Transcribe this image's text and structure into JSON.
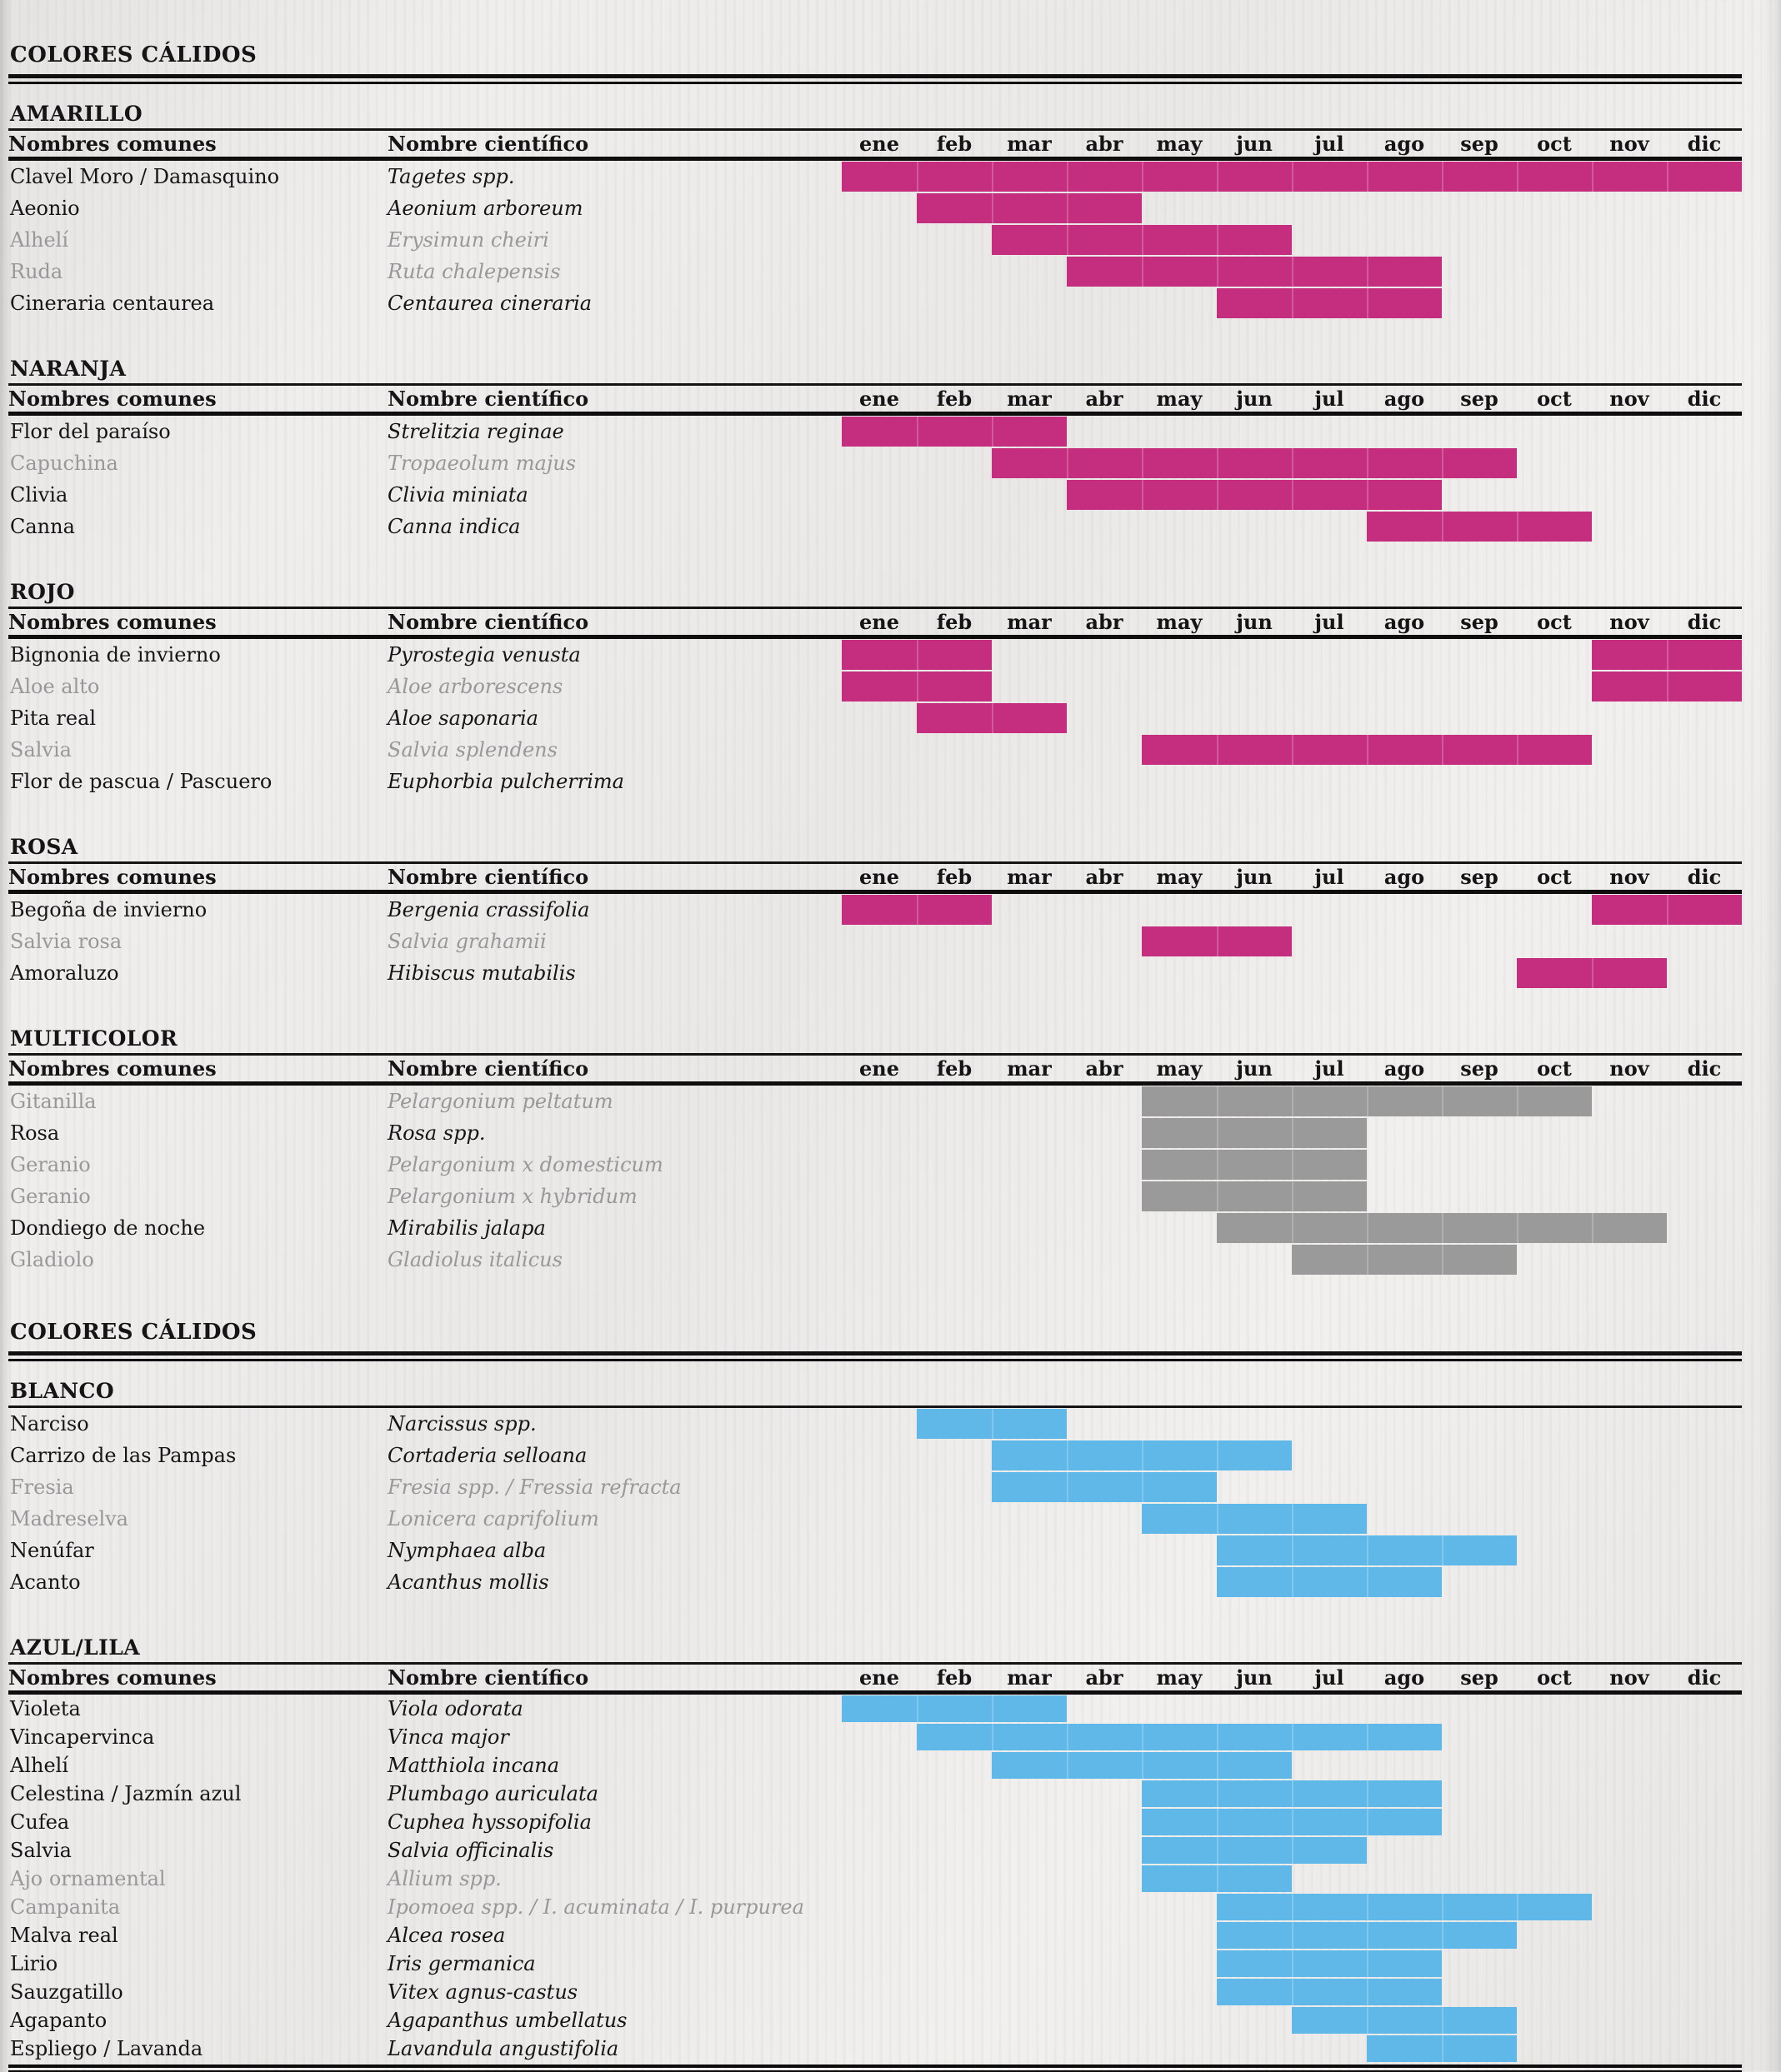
{
  "chart_data": {
    "type": "table",
    "title": "COLORES CÁLIDOS",
    "description_visible_text_only": true,
    "months": [
      "ene",
      "feb",
      "mar",
      "abr",
      "may",
      "jun",
      "jul",
      "ago",
      "sep",
      "oct",
      "nov",
      "dic"
    ],
    "column_headers": {
      "common": "Nombres comunes",
      "scientific": "Nombre científico"
    },
    "colors": {
      "warm_bar": "#c52d7e",
      "multicolor_bar": "#9a9a9a",
      "cool_bar": "#5fb8e8",
      "muted_text": "#989898",
      "ink": "#141414"
    },
    "groups": [
      {
        "title": "COLORES CÁLIDOS",
        "sections": [
          {
            "name": "AMARILLO",
            "bar_color": "#c52d7e",
            "month_header": true,
            "rows": [
              {
                "common": "Clavel Moro / Damasquino",
                "scientific": "Tagetes spp.",
                "muted": false,
                "bars": [
                  [
                    1,
                    12
                  ]
                ]
              },
              {
                "common": "Aeonio",
                "scientific": "Aeonium arboreum",
                "muted": false,
                "bars": [
                  [
                    2,
                    4
                  ]
                ]
              },
              {
                "common": "Alhelí",
                "scientific": "Erysimun cheiri",
                "muted": true,
                "bars": [
                  [
                    3,
                    6
                  ]
                ]
              },
              {
                "common": "Ruda",
                "scientific": "Ruta chalepensis",
                "muted": true,
                "bars": [
                  [
                    4,
                    8
                  ]
                ]
              },
              {
                "common": "Cineraria centaurea",
                "scientific": "Centaurea cineraria",
                "muted": false,
                "bars": [
                  [
                    6,
                    8
                  ]
                ]
              }
            ]
          },
          {
            "name": "NARANJA",
            "bar_color": "#c52d7e",
            "month_header": true,
            "rows": [
              {
                "common": "Flor del paraíso",
                "scientific": "Strelitzia reginae",
                "muted": false,
                "bars": [
                  [
                    1,
                    3
                  ]
                ]
              },
              {
                "common": "Capuchina",
                "scientific": "Tropaeolum majus",
                "muted": true,
                "bars": [
                  [
                    3,
                    9
                  ]
                ]
              },
              {
                "common": "Clivia",
                "scientific": "Clivia miniata",
                "muted": false,
                "bars": [
                  [
                    4,
                    8
                  ]
                ]
              },
              {
                "common": "Canna",
                "scientific": "Canna indica",
                "muted": false,
                "bars": [
                  [
                    8,
                    10
                  ]
                ]
              }
            ]
          },
          {
            "name": "ROJO",
            "bar_color": "#c52d7e",
            "month_header": true,
            "rows": [
              {
                "common": "Bignonia de invierno",
                "scientific": "Pyrostegia venusta",
                "muted": false,
                "bars": [
                  [
                    1,
                    2
                  ],
                  [
                    11,
                    12
                  ]
                ]
              },
              {
                "common": "Aloe alto",
                "scientific": "Aloe arborescens",
                "muted": true,
                "bars": [
                  [
                    1,
                    2
                  ],
                  [
                    11,
                    12
                  ]
                ]
              },
              {
                "common": "Pita real",
                "scientific": "Aloe saponaria",
                "muted": false,
                "bars": [
                  [
                    2,
                    3
                  ]
                ]
              },
              {
                "common": "Salvia",
                "scientific": "Salvia splendens",
                "muted": true,
                "bars": [
                  [
                    5,
                    10
                  ]
                ]
              },
              {
                "common": "Flor de pascua / Pascuero",
                "scientific": "Euphorbia pulcherrima",
                "muted": false,
                "bars": []
              }
            ]
          },
          {
            "name": "ROSA",
            "bar_color": "#c52d7e",
            "month_header": true,
            "rows": [
              {
                "common": "Begoña de invierno",
                "scientific": "Bergenia crassifolia",
                "muted": false,
                "bars": [
                  [
                    1,
                    2
                  ],
                  [
                    11,
                    12
                  ]
                ]
              },
              {
                "common": "Salvia rosa",
                "scientific": "Salvia grahamii",
                "muted": true,
                "bars": [
                  [
                    5,
                    6
                  ]
                ]
              },
              {
                "common": "Amoraluzo",
                "scientific": "Hibiscus mutabilis",
                "muted": false,
                "bars": [
                  [
                    10,
                    11
                  ]
                ]
              }
            ]
          },
          {
            "name": "MULTICOLOR",
            "bar_color": "#9a9a9a",
            "month_header": true,
            "rows": [
              {
                "common": "Gitanilla",
                "scientific": "Pelargonium peltatum",
                "muted": true,
                "bars": [
                  [
                    5,
                    10
                  ]
                ]
              },
              {
                "common": "Rosa",
                "scientific": "Rosa spp.",
                "muted": false,
                "bars": [
                  [
                    5,
                    7
                  ]
                ]
              },
              {
                "common": "Geranio",
                "scientific": "Pelargonium x domesticum",
                "muted": true,
                "bars": [
                  [
                    5,
                    7
                  ]
                ]
              },
              {
                "common": "Geranio",
                "scientific": "Pelargonium x hybridum",
                "muted": true,
                "bars": [
                  [
                    5,
                    7
                  ]
                ]
              },
              {
                "common": "Dondiego de noche",
                "scientific": "Mirabilis jalapa",
                "muted": false,
                "bars": [
                  [
                    6,
                    11
                  ]
                ]
              },
              {
                "common": "Gladiolo",
                "scientific": "Gladiolus italicus",
                "muted": true,
                "bars": [
                  [
                    7,
                    9
                  ]
                ]
              }
            ]
          }
        ]
      },
      {
        "title": "COLORES CÁLIDOS",
        "sections": [
          {
            "name": "BLANCO",
            "bar_color": "#5fb8e8",
            "month_header": false,
            "rows": [
              {
                "common": "Narciso",
                "scientific": "Narcissus spp.",
                "muted": false,
                "bars": [
                  [
                    2,
                    3
                  ]
                ]
              },
              {
                "common": "Carrizo de las Pampas",
                "scientific": "Cortaderia selloana",
                "muted": false,
                "bars": [
                  [
                    3,
                    6
                  ]
                ]
              },
              {
                "common": "Fresia",
                "scientific": "Fresia spp. / Fressia refracta",
                "muted": true,
                "bars": [
                  [
                    3,
                    5
                  ]
                ]
              },
              {
                "common": "Madreselva",
                "scientific": "Lonicera caprifolium",
                "muted": true,
                "bars": [
                  [
                    5,
                    7
                  ]
                ]
              },
              {
                "common": "Nenúfar",
                "scientific": "Nymphaea alba",
                "muted": false,
                "bars": [
                  [
                    6,
                    9
                  ]
                ]
              },
              {
                "common": "Acanto",
                "scientific": "Acanthus mollis",
                "muted": false,
                "bars": [
                  [
                    6,
                    8
                  ]
                ]
              }
            ]
          },
          {
            "name": "AZUL/LILA",
            "bar_color": "#5fb8e8",
            "month_header": true,
            "rows": [
              {
                "common": "Violeta",
                "scientific": "Viola odorata",
                "muted": false,
                "bars": [
                  [
                    1,
                    3
                  ]
                ]
              },
              {
                "common": "Vincapervinca",
                "scientific": "Vinca major",
                "muted": false,
                "bars": [
                  [
                    2,
                    8
                  ]
                ]
              },
              {
                "common": "Alhelí",
                "scientific": "Matthiola incana",
                "muted": false,
                "bars": [
                  [
                    3,
                    6
                  ]
                ]
              },
              {
                "common": "Celestina / Jazmín azul",
                "scientific": "Plumbago auriculata",
                "muted": false,
                "bars": [
                  [
                    5,
                    8
                  ]
                ]
              },
              {
                "common": "Cufea",
                "scientific": "Cuphea hyssopifolia",
                "muted": false,
                "bars": [
                  [
                    5,
                    8
                  ]
                ]
              },
              {
                "common": "Salvia",
                "scientific": "Salvia officinalis",
                "muted": false,
                "bars": [
                  [
                    5,
                    7
                  ]
                ]
              },
              {
                "common": "Ajo ornamental",
                "scientific": "Allium spp.",
                "muted": true,
                "bars": [
                  [
                    5,
                    6
                  ]
                ]
              },
              {
                "common": "Campanita",
                "scientific": "Ipomoea spp. / I. acuminata / I. purpurea",
                "muted": true,
                "bars": [
                  [
                    6,
                    10
                  ]
                ]
              },
              {
                "common": "Malva real",
                "scientific": "Alcea rosea",
                "muted": false,
                "bars": [
                  [
                    6,
                    9
                  ]
                ]
              },
              {
                "common": "Lirio",
                "scientific": "Iris germanica",
                "muted": false,
                "bars": [
                  [
                    6,
                    8
                  ]
                ]
              },
              {
                "common": "Sauzgatillo",
                "scientific": "Vitex agnus-castus",
                "muted": false,
                "bars": [
                  [
                    6,
                    8
                  ]
                ]
              },
              {
                "common": "Agapanto",
                "scientific": "Agapanthus umbellatus",
                "muted": false,
                "bars": [
                  [
                    7,
                    9
                  ]
                ]
              },
              {
                "common": "Espliego / Lavanda",
                "scientific": "Lavandula angustifolia",
                "muted": false,
                "bars": [
                  [
                    8,
                    9
                  ]
                ]
              }
            ]
          }
        ]
      }
    ]
  }
}
